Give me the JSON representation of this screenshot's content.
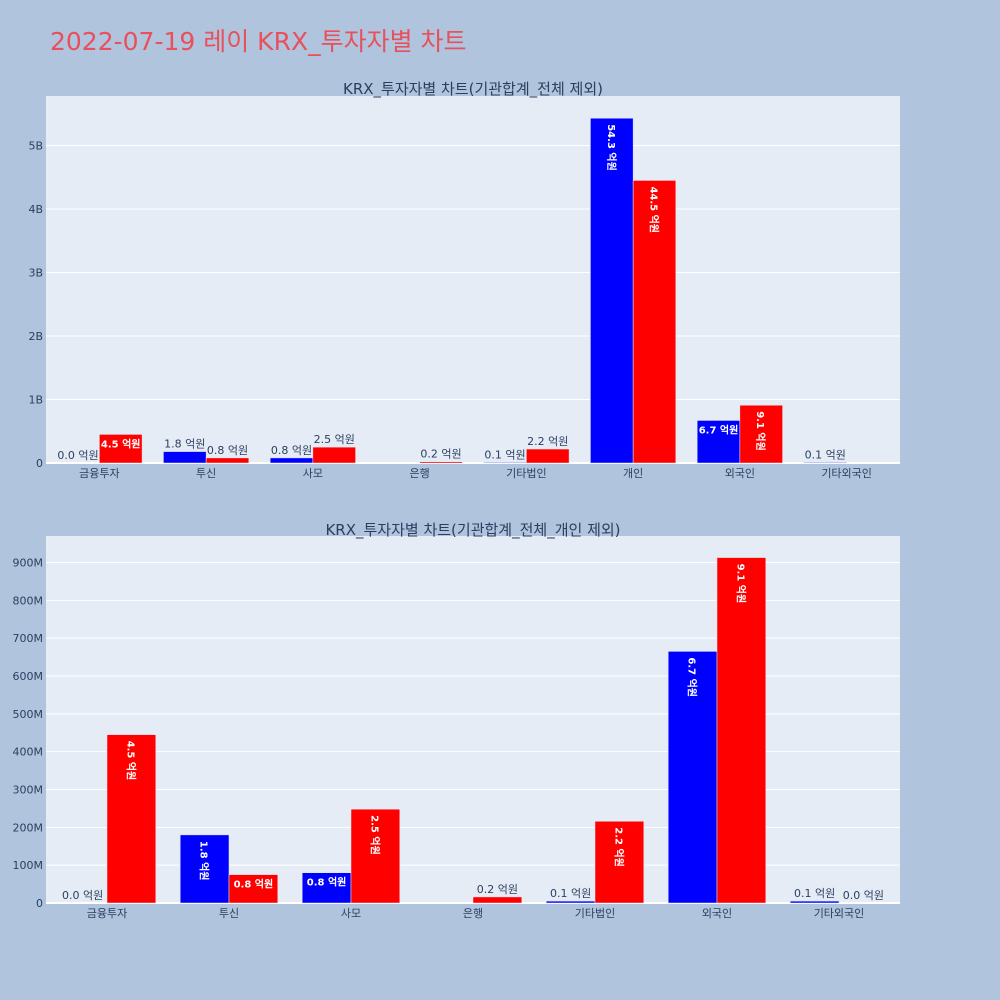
{
  "title": "2022-07-19 레이 KRX_투자자별 차트",
  "colors": {
    "buy": "#0000ff",
    "sell": "#ff0000",
    "plot_bg": "#e5ecf6",
    "paper_bg": "#b0c4de",
    "title": "#e8505b"
  },
  "chart_data": [
    {
      "type": "bar",
      "title": "KRX_투자자별 차트(기관합계_전체 제외)",
      "categories": [
        "금융투자",
        "투신",
        "사모",
        "은행",
        "기타법인",
        "개인",
        "외국인",
        "기타외국인"
      ],
      "series": [
        {
          "color": "#0000ff",
          "values": [
            0,
            180000000,
            80000000,
            0,
            10000000,
            5430000000,
            670000000,
            10000000
          ],
          "labels": [
            "0.0 억원",
            "1.8 억원",
            "0.8 억원",
            "",
            "0.1 억원",
            "54.3 억원",
            "6.7 억원",
            "0.1 억원"
          ]
        },
        {
          "color": "#ff0000",
          "values": [
            450000000,
            80000000,
            250000000,
            20000000,
            220000000,
            4450000000,
            910000000,
            0
          ],
          "labels": [
            "4.5 억원",
            "0.8 억원",
            "2.5 억원",
            "0.2 억원",
            "2.2 억원",
            "44.5 억원",
            "9.1 억원",
            ""
          ]
        }
      ],
      "ylim": [
        0,
        5780000000
      ],
      "yticks": [
        0,
        1000000000,
        2000000000,
        3000000000,
        4000000000,
        5000000000
      ],
      "ytick_labels": [
        "0",
        "1B",
        "2B",
        "3B",
        "4B",
        "5B"
      ],
      "grid": true
    },
    {
      "type": "bar",
      "title": "KRX_투자자별 차트(기관합계_전체_개인 제외)",
      "categories": [
        "금융투자",
        "투신",
        "사모",
        "은행",
        "기타법인",
        "외국인",
        "기타외국인"
      ],
      "series": [
        {
          "color": "#0000ff",
          "values": [
            0,
            180000000,
            80000000,
            0,
            5000000,
            665000000,
            5000000
          ],
          "labels": [
            "0.0 억원",
            "1.8 억원",
            "0.8 억원",
            "",
            "0.1 억원",
            "6.7 억원",
            "0.1 억원"
          ]
        },
        {
          "color": "#ff0000",
          "values": [
            445000000,
            75000000,
            248000000,
            16000000,
            216000000,
            913000000,
            0
          ],
          "labels": [
            "4.5 억원",
            "0.8 억원",
            "2.5 억원",
            "0.2 억원",
            "2.2 억원",
            "9.1 억원",
            "0.0 억원"
          ]
        }
      ],
      "ylim": [
        0,
        970000000
      ],
      "yticks": [
        0,
        100000000,
        200000000,
        300000000,
        400000000,
        500000000,
        600000000,
        700000000,
        800000000,
        900000000
      ],
      "ytick_labels": [
        "0",
        "100M",
        "200M",
        "300M",
        "400M",
        "500M",
        "600M",
        "700M",
        "800M",
        "900M"
      ],
      "grid": true
    }
  ]
}
